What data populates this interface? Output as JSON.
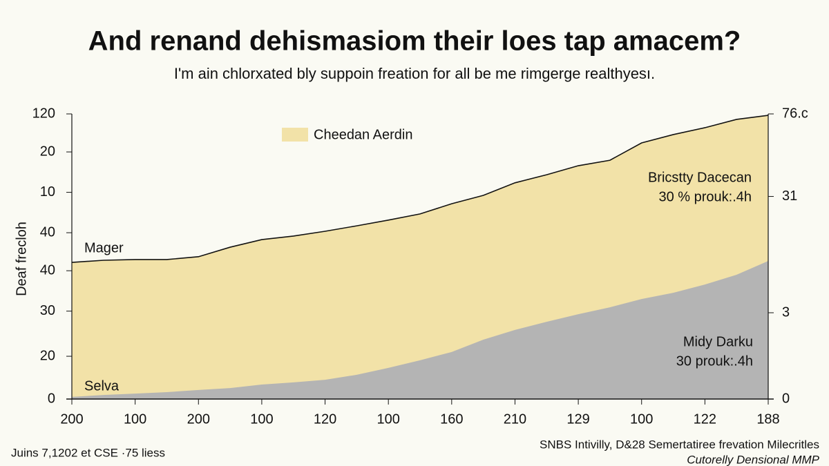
{
  "chart_data": {
    "type": "area",
    "title": "And renand dehismasiom their loes tap amacem?",
    "subtitle": "I'm ain chlorxated bly suppoin freation for all be me rimgerge realthyesı.",
    "y_label": "Deaf freclоh",
    "categories": [
      "200",
      null,
      "100",
      null,
      "200",
      null,
      "100",
      null,
      "120",
      null,
      "100",
      null,
      "160",
      null,
      "210",
      null,
      "129",
      null,
      "100",
      null,
      "122",
      null,
      "188"
    ],
    "series": [
      {
        "name": "Cheedan Aerdin",
        "color": "#f2e2a8",
        "line_color": "#111111",
        "values": [
          57.5,
          58.4,
          58.7,
          58.7,
          59.9,
          63.9,
          67.1,
          68.6,
          70.6,
          72.9,
          75.3,
          77.9,
          82.2,
          85.7,
          91.0,
          94.4,
          98.2,
          100.5,
          107.8,
          111.3,
          114.2,
          117.7,
          119.4
        ]
      },
      {
        "color": "#b4b4b4",
        "values": [
          0.9,
          1.7,
          2.3,
          2.9,
          3.8,
          4.6,
          6.1,
          7.0,
          8.1,
          10.2,
          13.1,
          16.3,
          19.8,
          25.0,
          29.1,
          32.5,
          35.7,
          38.6,
          42.1,
          44.7,
          48.2,
          52.3,
          58.1
        ]
      }
    ],
    "ylim": [
      0,
      120
    ],
    "yticks": [
      0,
      {
        "value": 18,
        "label": "20"
      },
      {
        "value": 37,
        "label": "30"
      },
      {
        "value": 54,
        "label": "40"
      },
      {
        "value": 70,
        "label": "40"
      },
      {
        "value": 87,
        "label": "10"
      },
      {
        "value": 104,
        "label": "20"
      },
      120
    ],
    "y2lim": [
      0,
      76
    ],
    "y2ticks": [
      0,
      {
        "value": 23,
        "label": "3"
      },
      {
        "value": 54,
        "label": "31"
      },
      {
        "value": 76,
        "label": "76.c"
      }
    ],
    "annotations": [
      "Mager",
      "Selva",
      "Bricstty Dacecan",
      "30 % prouk:.4h",
      "Midy Darku",
      "30 prouk:.4h"
    ],
    "footer_left": "Juins 7,1202 et CSE ·75 liess",
    "footer_right": "SNBS Intivilly, D&28 Semertatiree frevation Milecritles",
    "footer_right_sub": "Cutorelly Densional MMP",
    "legend": "top-left"
  }
}
